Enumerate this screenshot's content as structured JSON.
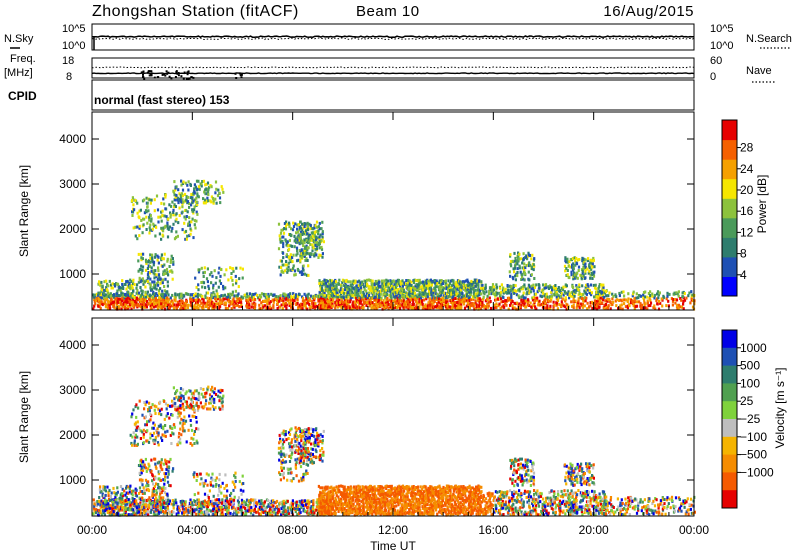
{
  "header": {
    "title": "Zhongshan Station (fitACF)",
    "beam": "Beam 10",
    "date": "16/Aug/2015"
  },
  "scan_panel": {
    "left_label": "N.Sky",
    "right_label": "N.Search",
    "tick_top": "10^5",
    "tick_bottom": "10^0"
  },
  "freq_panel": {
    "left_label_line1": "Freq.",
    "left_label_line2": "[MHz]",
    "left_tick_top": "18",
    "left_tick_bottom": "8",
    "right_label": "Nave",
    "right_tick_top": "60",
    "right_tick_bottom": "0",
    "cpid_label": "CPID",
    "cpid_text": "normal (fast stereo) 153"
  },
  "chart_data": [
    {
      "type": "heatmap",
      "name": "power",
      "ylabel": "Slant Range [km]",
      "y_ticks": [
        "1000",
        "2000",
        "3000",
        "4000"
      ],
      "ylim": [
        200,
        4600
      ],
      "x_ticks": [
        "00:00",
        "04:00",
        "08:00",
        "12:00",
        "16:00",
        "20:00",
        "00:00"
      ],
      "xlim_hours": [
        0,
        24
      ],
      "colorbar": {
        "label": "Power [dB]",
        "ticks": [
          "4",
          "8",
          "12",
          "16",
          "20",
          "24",
          "28"
        ],
        "colors": [
          "#0000ff",
          "#1e50b4",
          "#2e7d6e",
          "#4a9a5a",
          "#8cc23c",
          "#f5e600",
          "#f5a000",
          "#f56000",
          "#e60000"
        ]
      }
    },
    {
      "type": "heatmap",
      "name": "velocity",
      "ylabel": "Slant Range [km]",
      "y_ticks": [
        "1000",
        "2000",
        "3000",
        "4000"
      ],
      "ylim": [
        200,
        4600
      ],
      "x_ticks": [
        "00:00",
        "04:00",
        "08:00",
        "12:00",
        "16:00",
        "20:00",
        "00:00"
      ],
      "xlabel": "Time UT",
      "xlim_hours": [
        0,
        24
      ],
      "colorbar": {
        "label": "Velocity [m s⁻¹]",
        "ticks": [
          "1000",
          "500",
          "100",
          "25",
          "−25",
          "−100",
          "−500",
          "−1000"
        ],
        "colors": [
          "#0000e6",
          "#1e50b4",
          "#2e7d6e",
          "#50a050",
          "#7fd23c",
          "#bebebe",
          "#f5b400",
          "#f58c00",
          "#f55a00",
          "#e60000"
        ]
      }
    }
  ]
}
